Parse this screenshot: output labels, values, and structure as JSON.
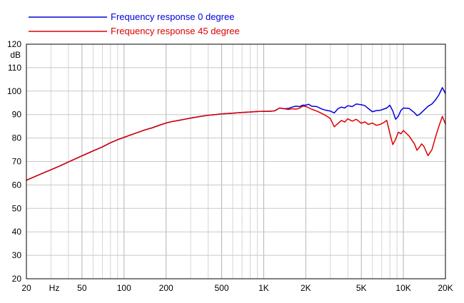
{
  "chart_data": {
    "type": "line",
    "x_scale": "log",
    "xlim": [
      20,
      20000
    ],
    "ylim": [
      20,
      120
    ],
    "grid": true,
    "legend_position": "top-left",
    "ylabel": "dB",
    "xunit_label": "Hz",
    "x_ticks": [
      {
        "value": 20,
        "label": "20"
      },
      {
        "value": 50,
        "label": "50"
      },
      {
        "value": 100,
        "label": "100"
      },
      {
        "value": 200,
        "label": "200"
      },
      {
        "value": 500,
        "label": "500"
      },
      {
        "value": 1000,
        "label": "1K"
      },
      {
        "value": 2000,
        "label": "2K"
      },
      {
        "value": 5000,
        "label": "5K"
      },
      {
        "value": 10000,
        "label": "10K"
      },
      {
        "value": 20000,
        "label": "20K"
      }
    ],
    "y_ticks": [
      20,
      30,
      40,
      50,
      60,
      70,
      80,
      90,
      100,
      110,
      120
    ],
    "series": [
      {
        "name": "Frequency response 0 degree",
        "color": "#0000dd",
        "points": [
          [
            20,
            62
          ],
          [
            25,
            64.5
          ],
          [
            30,
            66.5
          ],
          [
            35,
            68.2
          ],
          [
            40,
            69.8
          ],
          [
            50,
            72.4
          ],
          [
            60,
            74.5
          ],
          [
            70,
            76.2
          ],
          [
            80,
            78
          ],
          [
            90,
            79.3
          ],
          [
            100,
            80.3
          ],
          [
            120,
            82
          ],
          [
            140,
            83.4
          ],
          [
            160,
            84.4
          ],
          [
            180,
            85.5
          ],
          [
            200,
            86.4
          ],
          [
            220,
            87
          ],
          [
            250,
            87.6
          ],
          [
            300,
            88.5
          ],
          [
            350,
            89.2
          ],
          [
            400,
            89.7
          ],
          [
            450,
            90
          ],
          [
            500,
            90.3
          ],
          [
            600,
            90.6
          ],
          [
            700,
            90.9
          ],
          [
            800,
            91.1
          ],
          [
            900,
            91.3
          ],
          [
            1000,
            91.4
          ],
          [
            1100,
            91.4
          ],
          [
            1200,
            91.6
          ],
          [
            1300,
            92.8
          ],
          [
            1400,
            92.5
          ],
          [
            1500,
            92.6
          ],
          [
            1600,
            93.2
          ],
          [
            1700,
            93.6
          ],
          [
            1800,
            93.4
          ],
          [
            1900,
            94
          ],
          [
            2000,
            94
          ],
          [
            2100,
            94.4
          ],
          [
            2200,
            93.6
          ],
          [
            2400,
            93.4
          ],
          [
            2600,
            92.4
          ],
          [
            2800,
            91.8
          ],
          [
            3000,
            91.5
          ],
          [
            3200,
            90.7
          ],
          [
            3400,
            92.5
          ],
          [
            3600,
            93.2
          ],
          [
            3800,
            92.8
          ],
          [
            4000,
            93.8
          ],
          [
            4300,
            93.4
          ],
          [
            4600,
            94.5
          ],
          [
            5000,
            94.2
          ],
          [
            5300,
            93.8
          ],
          [
            5600,
            92.6
          ],
          [
            6000,
            91.2
          ],
          [
            6400,
            91.7
          ],
          [
            6800,
            91.8
          ],
          [
            7200,
            92.3
          ],
          [
            7600,
            92.8
          ],
          [
            8000,
            94
          ],
          [
            8400,
            91.5
          ],
          [
            8800,
            88
          ],
          [
            9200,
            89.3
          ],
          [
            9600,
            91.8
          ],
          [
            10000,
            92.8
          ],
          [
            11000,
            92.6
          ],
          [
            12000,
            90.8
          ],
          [
            12500,
            89.6
          ],
          [
            13000,
            90
          ],
          [
            14000,
            91.8
          ],
          [
            15000,
            93.5
          ],
          [
            16000,
            94.5
          ],
          [
            17000,
            96.3
          ],
          [
            18000,
            98.5
          ],
          [
            19000,
            101.5
          ],
          [
            20000,
            99
          ]
        ]
      },
      {
        "name": "Frequency response 45 degree",
        "color": "#dd0000",
        "points": [
          [
            20,
            62
          ],
          [
            25,
            64.5
          ],
          [
            30,
            66.5
          ],
          [
            35,
            68.2
          ],
          [
            40,
            69.8
          ],
          [
            50,
            72.4
          ],
          [
            60,
            74.5
          ],
          [
            70,
            76.2
          ],
          [
            80,
            78
          ],
          [
            90,
            79.3
          ],
          [
            100,
            80.3
          ],
          [
            120,
            82
          ],
          [
            140,
            83.4
          ],
          [
            160,
            84.4
          ],
          [
            180,
            85.5
          ],
          [
            200,
            86.4
          ],
          [
            220,
            87
          ],
          [
            250,
            87.6
          ],
          [
            300,
            88.5
          ],
          [
            350,
            89.2
          ],
          [
            400,
            89.7
          ],
          [
            450,
            90
          ],
          [
            500,
            90.3
          ],
          [
            600,
            90.6
          ],
          [
            700,
            90.9
          ],
          [
            800,
            91.1
          ],
          [
            900,
            91.3
          ],
          [
            1000,
            91.4
          ],
          [
            1100,
            91.4
          ],
          [
            1200,
            91.6
          ],
          [
            1300,
            92.8
          ],
          [
            1400,
            92.5
          ],
          [
            1500,
            92.2
          ],
          [
            1600,
            92.5
          ],
          [
            1700,
            92.3
          ],
          [
            1800,
            92.7
          ],
          [
            1900,
            93.6
          ],
          [
            2000,
            93.5
          ],
          [
            2200,
            92.3
          ],
          [
            2400,
            91.5
          ],
          [
            2600,
            90.5
          ],
          [
            2800,
            89.5
          ],
          [
            3000,
            88.3
          ],
          [
            3200,
            84.8
          ],
          [
            3400,
            86.2
          ],
          [
            3600,
            87.5
          ],
          [
            3800,
            86.8
          ],
          [
            4000,
            88.2
          ],
          [
            4300,
            87.2
          ],
          [
            4600,
            88
          ],
          [
            5000,
            86.3
          ],
          [
            5300,
            86.9
          ],
          [
            5600,
            85.8
          ],
          [
            6000,
            86.4
          ],
          [
            6400,
            85.4
          ],
          [
            6800,
            85.8
          ],
          [
            7200,
            86.5
          ],
          [
            7600,
            87.5
          ],
          [
            8000,
            82
          ],
          [
            8400,
            77.2
          ],
          [
            8800,
            79.5
          ],
          [
            9200,
            82.5
          ],
          [
            9600,
            81.8
          ],
          [
            10000,
            83.2
          ],
          [
            11000,
            80.8
          ],
          [
            12000,
            77.5
          ],
          [
            12500,
            74.8
          ],
          [
            13000,
            76
          ],
          [
            13500,
            77.5
          ],
          [
            14000,
            76.5
          ],
          [
            15000,
            72.5
          ],
          [
            16000,
            75
          ],
          [
            17000,
            80.5
          ],
          [
            18000,
            85.2
          ],
          [
            19000,
            89.2
          ],
          [
            20000,
            86
          ]
        ]
      }
    ]
  }
}
